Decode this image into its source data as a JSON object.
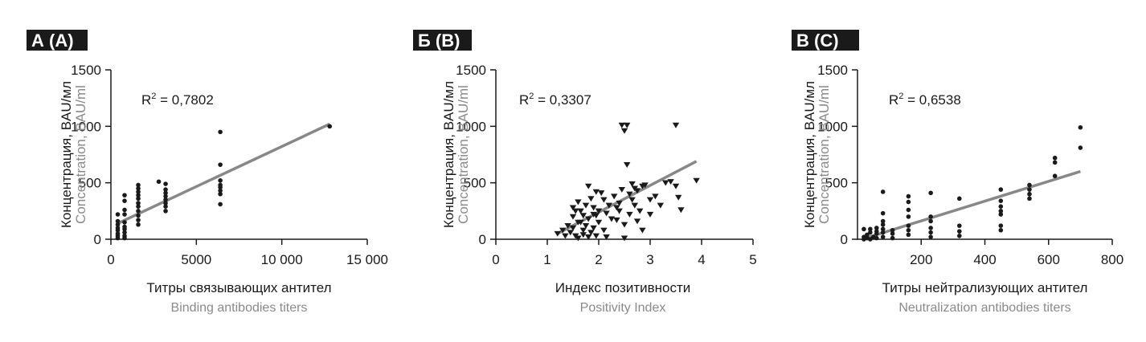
{
  "chart_data": [
    {
      "type": "scatter",
      "panel_tag": "А (А)",
      "marker": "circle",
      "ylabel_ru": "Концентрация, BAU/мл",
      "ylabel_en": "Concentration, BAU/ml",
      "xlabel_ru": "Титры связывающих антител",
      "xlabel_en": "Binding antibodies titers",
      "r2_label": "R",
      "r2_sup": "2",
      "r2_value": " = 0,7802",
      "xlim": [
        0,
        15000
      ],
      "ylim": [
        0,
        1500
      ],
      "xticks": [
        0,
        5000,
        10000,
        15000
      ],
      "xtick_labels": [
        "0",
        "5000",
        "10 000",
        "15 000"
      ],
      "yticks": [
        0,
        500,
        1000,
        1500
      ],
      "ytick_labels": [
        "0",
        "500",
        "1000",
        "1500"
      ],
      "trend": {
        "x1": 400,
        "y1": 140,
        "x2": 12800,
        "y2": 1020
      },
      "points": [
        [
          400,
          10
        ],
        [
          400,
          30
        ],
        [
          400,
          50
        ],
        [
          400,
          80
        ],
        [
          400,
          100
        ],
        [
          400,
          130
        ],
        [
          400,
          160
        ],
        [
          400,
          220
        ],
        [
          800,
          10
        ],
        [
          800,
          30
        ],
        [
          800,
          60
        ],
        [
          800,
          90
        ],
        [
          800,
          110
        ],
        [
          800,
          150
        ],
        [
          800,
          220
        ],
        [
          800,
          260
        ],
        [
          800,
          340
        ],
        [
          800,
          390
        ],
        [
          1600,
          130
        ],
        [
          1600,
          170
        ],
        [
          1600,
          210
        ],
        [
          1600,
          250
        ],
        [
          1600,
          290
        ],
        [
          1600,
          320
        ],
        [
          1600,
          360
        ],
        [
          1600,
          390
        ],
        [
          1600,
          420
        ],
        [
          1600,
          450
        ],
        [
          1600,
          480
        ],
        [
          2800,
          510
        ],
        [
          3200,
          250
        ],
        [
          3200,
          290
        ],
        [
          3200,
          320
        ],
        [
          3200,
          350
        ],
        [
          3200,
          380
        ],
        [
          3200,
          410
        ],
        [
          3200,
          440
        ],
        [
          3200,
          490
        ],
        [
          6400,
          310
        ],
        [
          6400,
          400
        ],
        [
          6400,
          430
        ],
        [
          6400,
          460
        ],
        [
          6400,
          480
        ],
        [
          6400,
          520
        ],
        [
          6400,
          660
        ],
        [
          6400,
          950
        ],
        [
          12800,
          1000
        ]
      ]
    },
    {
      "type": "scatter",
      "panel_tag": "Б (В)",
      "marker": "triangle-down",
      "ylabel_ru": "Концентрация, BAU/мл",
      "ylabel_en": "Concentration, BAU/ml",
      "xlabel_ru": "Индекс позитивности",
      "xlabel_en": "Positivity Index",
      "r2_label": "R",
      "r2_sup": "2",
      "r2_value": " = 0,3307",
      "xlim": [
        0,
        5
      ],
      "ylim": [
        0,
        1500
      ],
      "xticks": [
        0,
        1,
        2,
        3,
        4,
        5
      ],
      "xtick_labels": [
        "0",
        "1",
        "2",
        "3",
        "4",
        "5"
      ],
      "yticks": [
        0,
        500,
        1000,
        1500
      ],
      "ytick_labels": [
        "0",
        "500",
        "1000",
        "1500"
      ],
      "trend": {
        "x1": 1.2,
        "y1": 50,
        "x2": 3.9,
        "y2": 690
      },
      "points": [
        [
          1.2,
          50
        ],
        [
          1.3,
          80
        ],
        [
          1.35,
          30
        ],
        [
          1.4,
          120
        ],
        [
          1.45,
          60
        ],
        [
          1.5,
          200
        ],
        [
          1.5,
          100
        ],
        [
          1.55,
          30
        ],
        [
          1.6,
          150
        ],
        [
          1.6,
          10
        ],
        [
          1.65,
          250
        ],
        [
          1.7,
          80
        ],
        [
          1.7,
          40
        ],
        [
          1.75,
          300
        ],
        [
          1.75,
          120
        ],
        [
          1.8,
          180
        ],
        [
          1.8,
          20
        ],
        [
          1.85,
          60
        ],
        [
          1.9,
          100
        ],
        [
          1.9,
          220
        ],
        [
          1.95,
          30
        ],
        [
          1.5,
          280
        ],
        [
          1.6,
          330
        ],
        [
          1.7,
          210
        ],
        [
          1.8,
          470
        ],
        [
          1.85,
          360
        ],
        [
          1.9,
          280
        ],
        [
          1.95,
          420
        ],
        [
          2.0,
          150
        ],
        [
          2.0,
          250
        ],
        [
          2.05,
          410
        ],
        [
          2.1,
          350
        ],
        [
          2.1,
          80
        ],
        [
          2.15,
          20
        ],
        [
          2.2,
          300
        ],
        [
          2.25,
          180
        ],
        [
          2.3,
          380
        ],
        [
          2.35,
          280
        ],
        [
          2.4,
          320
        ],
        [
          2.4,
          250
        ],
        [
          2.45,
          440
        ],
        [
          2.45,
          1010
        ],
        [
          2.5,
          960
        ],
        [
          2.5,
          130
        ],
        [
          2.5,
          10
        ],
        [
          2.55,
          660
        ],
        [
          2.55,
          1010
        ],
        [
          2.6,
          400
        ],
        [
          2.6,
          220
        ],
        [
          2.65,
          350
        ],
        [
          2.7,
          450
        ],
        [
          2.7,
          300
        ],
        [
          2.75,
          160
        ],
        [
          2.75,
          430
        ],
        [
          2.8,
          250
        ],
        [
          2.85,
          470
        ],
        [
          2.85,
          80
        ],
        [
          2.9,
          480
        ],
        [
          3.0,
          350
        ],
        [
          3.0,
          220
        ],
        [
          3.1,
          380
        ],
        [
          3.2,
          300
        ],
        [
          3.3,
          500
        ],
        [
          3.4,
          510
        ],
        [
          3.5,
          1010
        ],
        [
          3.5,
          470
        ],
        [
          3.55,
          370
        ],
        [
          3.6,
          260
        ],
        [
          3.9,
          520
        ],
        [
          1.55,
          250
        ],
        [
          1.65,
          150
        ],
        [
          1.95,
          210
        ],
        [
          2.15,
          230
        ],
        [
          2.35,
          170
        ],
        [
          2.65,
          490
        ]
      ]
    },
    {
      "type": "scatter",
      "panel_tag": "В (С)",
      "marker": "circle",
      "ylabel_ru": "Концентрация, BAU/мл",
      "ylabel_en": "Concentration, BAU/ml",
      "xlabel_ru": "Титры нейтрализующих антител",
      "xlabel_en": "Neutralization antibodies titers",
      "r2_label": "R",
      "r2_sup": "2",
      "r2_value": " = 0,6538",
      "xlim": [
        0,
        800
      ],
      "ylim": [
        0,
        1500
      ],
      "xticks": [
        200,
        400,
        600,
        800
      ],
      "xtick_labels": [
        "200",
        "400",
        "600",
        "800"
      ],
      "yticks": [
        0,
        500,
        1000,
        1500
      ],
      "ytick_labels": [
        "0",
        "500",
        "1000",
        "1500"
      ],
      "trend": {
        "x1": 20,
        "y1": 5,
        "x2": 700,
        "y2": 600
      },
      "points": [
        [
          20,
          0
        ],
        [
          20,
          20
        ],
        [
          20,
          90
        ],
        [
          30,
          10
        ],
        [
          30,
          40
        ],
        [
          40,
          0
        ],
        [
          40,
          60
        ],
        [
          40,
          90
        ],
        [
          50,
          20
        ],
        [
          60,
          10
        ],
        [
          60,
          50
        ],
        [
          60,
          70
        ],
        [
          60,
          100
        ],
        [
          80,
          20
        ],
        [
          80,
          60
        ],
        [
          80,
          90
        ],
        [
          80,
          130
        ],
        [
          80,
          160
        ],
        [
          80,
          230
        ],
        [
          80,
          420
        ],
        [
          110,
          10
        ],
        [
          110,
          50
        ],
        [
          110,
          80
        ],
        [
          160,
          40
        ],
        [
          160,
          80
        ],
        [
          160,
          120
        ],
        [
          160,
          200
        ],
        [
          160,
          260
        ],
        [
          160,
          330
        ],
        [
          160,
          380
        ],
        [
          230,
          20
        ],
        [
          230,
          60
        ],
        [
          230,
          100
        ],
        [
          230,
          160
        ],
        [
          230,
          200
        ],
        [
          230,
          410
        ],
        [
          320,
          30
        ],
        [
          320,
          70
        ],
        [
          320,
          120
        ],
        [
          320,
          360
        ],
        [
          450,
          80
        ],
        [
          450,
          120
        ],
        [
          450,
          220
        ],
        [
          450,
          250
        ],
        [
          450,
          290
        ],
        [
          450,
          340
        ],
        [
          450,
          440
        ],
        [
          540,
          360
        ],
        [
          540,
          400
        ],
        [
          540,
          440
        ],
        [
          540,
          480
        ],
        [
          620,
          560
        ],
        [
          620,
          680
        ],
        [
          620,
          720
        ],
        [
          700,
          810
        ],
        [
          700,
          990
        ]
      ]
    }
  ]
}
